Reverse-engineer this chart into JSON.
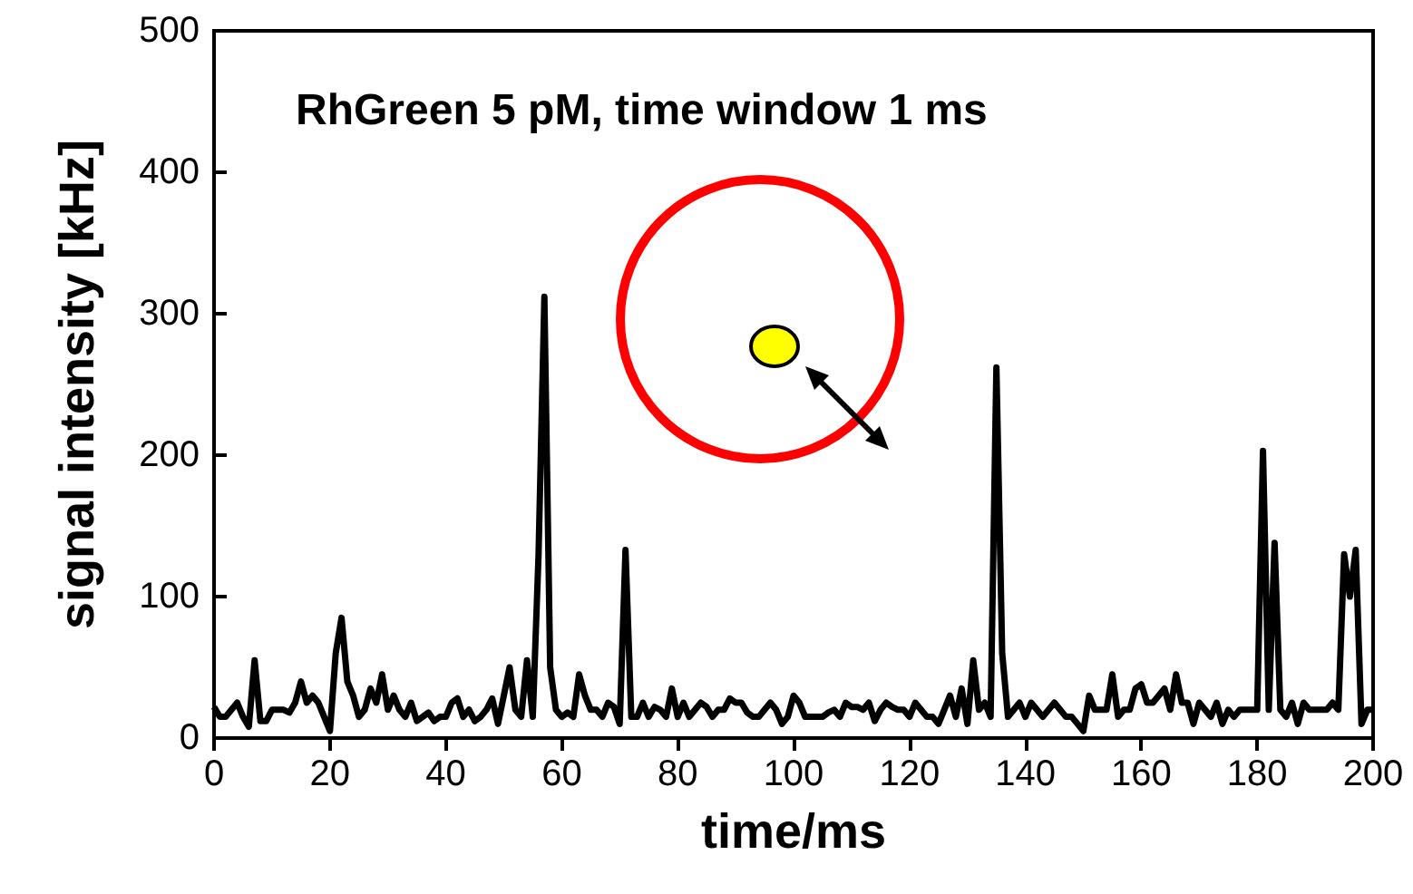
{
  "chart_data": {
    "type": "line",
    "title": "RhGreen 5 pM, time window 1 ms",
    "xlabel": "time/ms",
    "ylabel": "signal intensity [kHz]",
    "x": [
      0,
      1,
      2,
      3,
      4,
      5,
      6,
      7,
      8,
      9,
      10,
      11,
      12,
      13,
      14,
      15,
      16,
      17,
      18,
      19,
      20,
      21,
      22,
      23,
      24,
      25,
      26,
      27,
      28,
      29,
      30,
      31,
      32,
      33,
      34,
      35,
      36,
      37,
      38,
      39,
      40,
      41,
      42,
      43,
      44,
      45,
      46,
      47,
      48,
      49,
      50,
      51,
      52,
      53,
      54,
      55,
      56,
      57,
      58,
      59,
      60,
      61,
      62,
      63,
      64,
      65,
      66,
      67,
      68,
      69,
      70,
      71,
      72,
      73,
      74,
      75,
      76,
      77,
      78,
      79,
      80,
      81,
      82,
      83,
      84,
      85,
      86,
      87,
      88,
      89,
      90,
      91,
      92,
      93,
      94,
      95,
      96,
      97,
      98,
      99,
      100,
      101,
      102,
      103,
      104,
      105,
      106,
      107,
      108,
      109,
      110,
      111,
      112,
      113,
      114,
      115,
      116,
      117,
      118,
      119,
      120,
      121,
      122,
      123,
      124,
      125,
      126,
      127,
      128,
      129,
      130,
      131,
      132,
      133,
      134,
      135,
      136,
      137,
      138,
      139,
      140,
      141,
      142,
      143,
      144,
      145,
      146,
      147,
      148,
      149,
      150,
      151,
      152,
      153,
      154,
      155,
      156,
      157,
      158,
      159,
      160,
      161,
      162,
      163,
      164,
      165,
      166,
      167,
      168,
      169,
      170,
      171,
      172,
      173,
      174,
      175,
      176,
      177,
      178,
      179,
      180,
      181,
      182,
      183,
      184,
      185,
      186,
      187,
      188,
      189,
      190,
      191,
      192,
      193,
      194,
      195,
      196,
      197,
      198,
      199,
      200
    ],
    "series": [
      {
        "color": "#000000",
        "values": [
          22,
          15,
          15,
          20,
          25,
          15,
          8,
          55,
          12,
          12,
          20,
          20,
          20,
          18,
          25,
          40,
          25,
          30,
          25,
          15,
          5,
          60,
          85,
          40,
          30,
          15,
          20,
          35,
          25,
          45,
          20,
          30,
          20,
          15,
          25,
          12,
          15,
          18,
          12,
          15,
          15,
          25,
          28,
          15,
          20,
          12,
          15,
          20,
          28,
          10,
          30,
          50,
          20,
          15,
          55,
          15,
          130,
          312,
          50,
          20,
          15,
          18,
          15,
          45,
          30,
          20,
          20,
          15,
          25,
          22,
          10,
          133,
          15,
          15,
          25,
          15,
          22,
          20,
          15,
          35,
          15,
          25,
          15,
          20,
          25,
          22,
          15,
          20,
          20,
          28,
          25,
          25,
          18,
          15,
          15,
          20,
          25,
          20,
          10,
          15,
          30,
          25,
          15,
          15,
          15,
          15,
          18,
          20,
          15,
          25,
          22,
          22,
          20,
          25,
          12,
          20,
          25,
          22,
          20,
          20,
          15,
          25,
          20,
          15,
          15,
          10,
          20,
          30,
          15,
          35,
          10,
          55,
          20,
          25,
          15,
          262,
          60,
          15,
          20,
          25,
          15,
          25,
          20,
          15,
          20,
          25,
          20,
          15,
          15,
          10,
          5,
          30,
          20,
          20,
          20,
          45,
          15,
          20,
          20,
          35,
          38,
          25,
          25,
          30,
          35,
          20,
          45,
          25,
          25,
          10,
          25,
          20,
          15,
          25,
          10,
          20,
          15,
          20,
          20,
          20,
          20,
          203,
          20,
          138,
          20,
          15,
          25,
          10,
          25,
          20,
          20,
          20,
          20,
          25,
          20,
          130,
          100,
          133,
          10,
          20,
          20
        ]
      }
    ],
    "xlim": [
      0,
      200
    ],
    "xticks": [
      0,
      20,
      40,
      60,
      80,
      100,
      120,
      140,
      160,
      180,
      200
    ],
    "ylim": [
      0,
      500
    ],
    "yticks": [
      0,
      100,
      200,
      300,
      400,
      500
    ],
    "grid": false,
    "marker": "none",
    "line_style": "solid"
  }
}
